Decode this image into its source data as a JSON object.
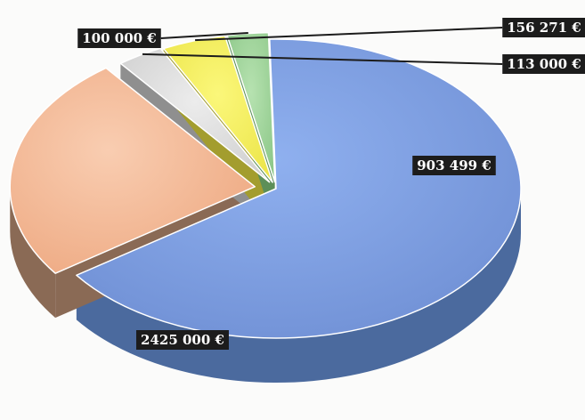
{
  "chart_data": {
    "type": "pie",
    "title": "",
    "categories": [
      "",
      "",
      "",
      "",
      ""
    ],
    "values": [
      2425000,
      903499,
      113000,
      156271,
      100000
    ],
    "data_labels": [
      "2425 000 €",
      "903 499 €",
      "113 000 €",
      "156 271 €",
      "100 000 €"
    ],
    "colors": [
      "#7f9fdf",
      "#f4b896",
      "#d9d9d9",
      "#f4ef5a",
      "#9fd39a"
    ],
    "style": "3d-exploded",
    "legend": "none"
  }
}
